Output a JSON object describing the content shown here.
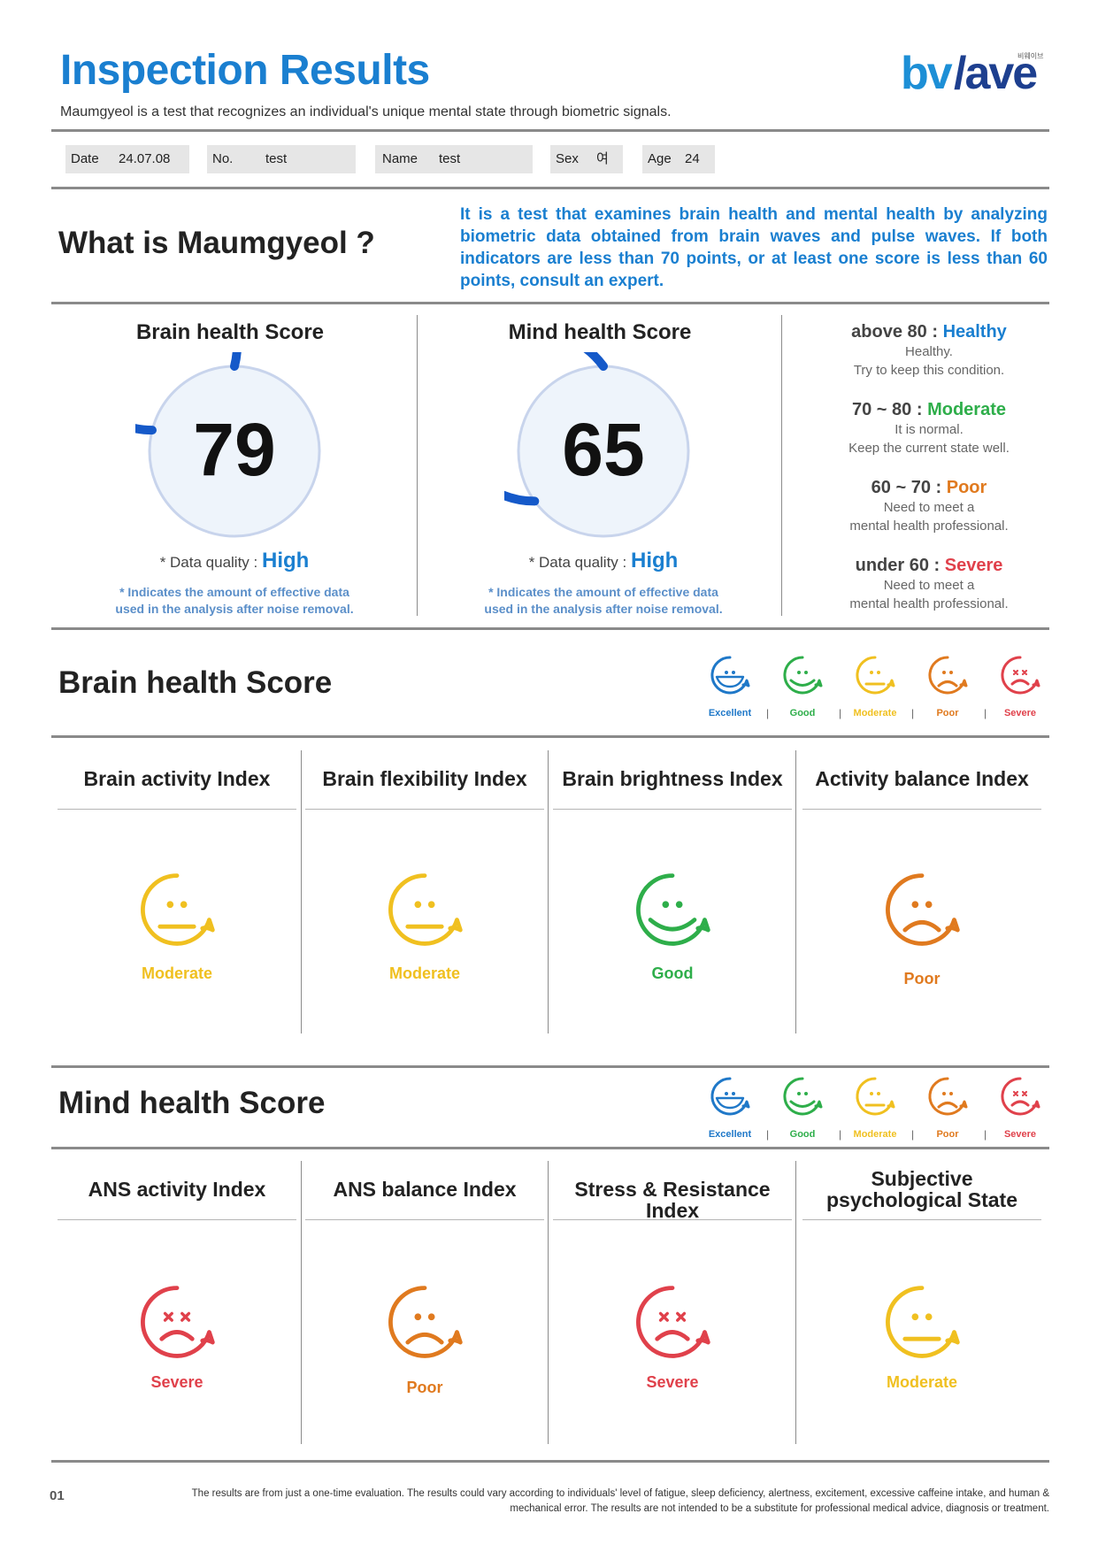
{
  "header": {
    "title": "Inspection Results",
    "subtitle": "Maumgyeol is a test that recognizes an individual's unique mental state through biometric signals.",
    "logo_text": "bwave",
    "logo_small": "비웨이브"
  },
  "info": {
    "date_label": "Date",
    "date_value": "24.07.08",
    "no_label": "No.",
    "no_value": "test",
    "name_label": "Name",
    "name_value": "test",
    "sex_label": "Sex",
    "sex_value": "여",
    "age_label": "Age",
    "age_value": "24"
  },
  "what": {
    "title": "What is Maumgyeol ?",
    "description": "It is a test that examines brain health and mental health by analyzing biometric data obtained from brain waves and pulse waves. If both indicators are less than 70 points, or at least one score is less than 60 points, consult an expert."
  },
  "scores": {
    "brain": {
      "title": "Brain health Score",
      "value": 79,
      "quality_label": "* Data quality :",
      "quality": "High",
      "note1": "* Indicates the amount of effective data",
      "note2": "used in the analysis after noise removal."
    },
    "mind": {
      "title": "Mind health Score",
      "value": 65,
      "quality_label": "* Data quality :",
      "quality": "High",
      "note1": "* Indicates the amount of effective data",
      "note2": "used in the analysis after noise removal."
    }
  },
  "legend": [
    {
      "range": "above 80 :",
      "level": "Healthy",
      "line1": "Healthy.",
      "line2": "Try to keep this condition.",
      "color": "#1a7fd0"
    },
    {
      "range": "70 ~ 80 :",
      "level": "Moderate",
      "line1": "It is normal.",
      "line2": "Keep the current state well.",
      "color": "#2eae4a"
    },
    {
      "range": "60 ~ 70 :",
      "level": "Poor",
      "line1": "Need to meet a",
      "line2": "mental health professional.",
      "color": "#e07a1f"
    },
    {
      "range": "under 60 :",
      "level": "Severe",
      "line1": "Need to meet a",
      "line2": "mental health professional.",
      "color": "#e0414b"
    }
  ],
  "scale": [
    {
      "label": "Excellent",
      "icon": "excellent-face-icon",
      "color": "#1f78c8"
    },
    {
      "label": "Good",
      "icon": "good-face-icon",
      "color": "#2eae4a"
    },
    {
      "label": "Moderate",
      "icon": "moderate-face-icon",
      "color": "#f0c020"
    },
    {
      "label": "Poor",
      "icon": "poor-face-icon",
      "color": "#e07a1f"
    },
    {
      "label": "Severe",
      "icon": "severe-face-icon",
      "color": "#e0414b"
    }
  ],
  "brain_section": {
    "title": "Brain health Score",
    "indices": [
      {
        "title": "Brain activity Index",
        "result": "Moderate"
      },
      {
        "title": "Brain flexibility Index",
        "result": "Moderate"
      },
      {
        "title": "Brain brightness Index",
        "result": "Good"
      },
      {
        "title": "Activity balance Index",
        "result": "Poor"
      }
    ]
  },
  "mind_section": {
    "title": "Mind health Score",
    "indices": [
      {
        "title": "ANS activity Index",
        "result": "Severe"
      },
      {
        "title": "ANS balance Index",
        "result": "Poor"
      },
      {
        "title": "Stress & Resistance Index",
        "result": "Severe"
      },
      {
        "title": "Subjective psychological State",
        "result": "Moderate"
      }
    ]
  },
  "footer": {
    "page": "01",
    "line1": "The results are from just a one-time evaluation. The results could vary according to individuals' level of fatigue, sleep deficiency, alertness, excitement, excessive caffeine intake, and human &",
    "line2": "mechanical error. The results are not intended to be a substitute for professional medical advice, diagnosis or treatment."
  }
}
